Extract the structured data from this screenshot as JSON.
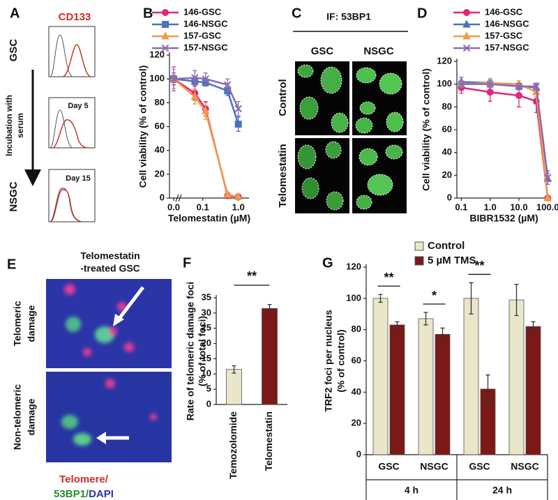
{
  "panels": {
    "A": {
      "label": "A",
      "marker": "CD133",
      "top": "GSC",
      "arrow": [
        "Incubation with",
        "serum"
      ],
      "bottom": "NSGC",
      "days": [
        "Day 5",
        "Day 15"
      ]
    },
    "C": {
      "label": "C",
      "title": "IF: 53BP1",
      "columns": [
        "GSC",
        "NSGC"
      ],
      "rows": [
        "Control",
        "Telomestatin"
      ]
    },
    "E": {
      "label": "E",
      "title": [
        "Telomestatin",
        "-treated GSC"
      ],
      "rows": [
        [
          "Telomeric",
          "damage"
        ],
        [
          "Non-telomeric",
          "damage"
        ]
      ],
      "legend": [
        "Telomere/",
        "53BP1/",
        "DAPI"
      ]
    }
  },
  "chart_data": [
    {
      "type": "line",
      "panel_label": "B",
      "ylabel": "Cell viability (% of control)",
      "xlabel": "Telomestatin (µM)",
      "log_x": true,
      "x": [
        0,
        0.06,
        0.12,
        0.5,
        1.0
      ],
      "xlim": [
        0.03,
        2
      ],
      "xticks": [
        {
          "value": 0,
          "label": "0.0"
        },
        0.1,
        {
          "value": 1,
          "label": "1.0"
        }
      ],
      "ylim": [
        0,
        120
      ],
      "yticks": [
        0,
        20,
        40,
        60,
        80,
        100,
        120
      ],
      "series": [
        {
          "name": "146-GSC",
          "color": "#e0277a",
          "marker": "o",
          "values": [
            100,
            88,
            75,
            2,
            1
          ],
          "errors": [
            5,
            6,
            6,
            2,
            1
          ]
        },
        {
          "name": "146-NSGC",
          "color": "#4a72c0",
          "marker": "s",
          "values": [
            100,
            98,
            97,
            90,
            62
          ],
          "errors": [
            3,
            3,
            3,
            4,
            6
          ]
        },
        {
          "name": "157-GSC",
          "color": "#f09a4a",
          "marker": "^",
          "values": [
            100,
            85,
            73,
            3,
            1
          ],
          "errors": [
            8,
            6,
            7,
            2,
            1
          ]
        },
        {
          "name": "157-NSGC",
          "color": "#8c6bb1",
          "marker": "x",
          "values": [
            100,
            101,
            100,
            95,
            75
          ],
          "errors": [
            10,
            6,
            5,
            5,
            6
          ]
        }
      ]
    },
    {
      "type": "line",
      "panel_label": "D",
      "ylabel": "Cell viability (% of control)",
      "xlabel": "BIBR1532 (µM)",
      "log_x": true,
      "x": [
        0.1,
        1,
        10,
        40,
        100
      ],
      "xlim": [
        0.07,
        130
      ],
      "xticks": [
        0.1,
        {
          "value": 1,
          "label": "1.0"
        },
        {
          "value": 10,
          "label": "10.0"
        },
        {
          "value": 100,
          "label": "100.0"
        }
      ],
      "ylim": [
        0,
        120
      ],
      "yticks": [
        0,
        20,
        40,
        60,
        80,
        100,
        120
      ],
      "series": [
        {
          "name": "146-GSC",
          "color": "#e0277a",
          "marker": "o",
          "values": [
            97,
            93,
            90,
            85,
            0
          ],
          "errors": [
            5,
            8,
            10,
            10,
            1
          ]
        },
        {
          "name": "146-NSGC",
          "color": "#4a72c0",
          "marker": "^",
          "values": [
            102,
            101,
            98,
            97,
            17
          ],
          "errors": [
            4,
            3,
            3,
            3,
            5
          ]
        },
        {
          "name": "157-GSC",
          "color": "#f09a4a",
          "marker": "^",
          "values": [
            100,
            101,
            100,
            93,
            0
          ],
          "errors": [
            3,
            4,
            3,
            4,
            1
          ]
        },
        {
          "name": "157-NSGC",
          "color": "#8c6bb1",
          "marker": "x",
          "values": [
            100,
            100,
            98,
            98,
            18
          ],
          "errors": [
            3,
            3,
            3,
            3,
            6
          ]
        }
      ]
    },
    {
      "type": "bar",
      "panel_label": "F",
      "ylabel": [
        "Rate of telomeric damage foci",
        "(% of total foci)"
      ],
      "categories": [
        "Temozolomide",
        "Telomestatin"
      ],
      "values": [
        11.5,
        31.5
      ],
      "errors": [
        1.2,
        1.3
      ],
      "colors": [
        "#e9e6c9",
        "#7b1818"
      ],
      "ylim": [
        0,
        35
      ],
      "yticks": [
        0,
        5,
        10,
        15,
        20,
        25,
        30,
        35
      ],
      "significance": "**"
    },
    {
      "type": "grouped_bar",
      "panel_label": "G",
      "ylabel": [
        "TRF2 foci per nucleus",
        "(% of control)"
      ],
      "categories": [
        "GSC",
        "NSGC",
        "GSC",
        "NSGC"
      ],
      "groups": [
        "4 h",
        "24 h"
      ],
      "series": [
        {
          "name": "Control",
          "color": "#e9e6c9",
          "values": [
            100,
            87,
            100,
            99
          ],
          "errors": [
            2.5,
            4,
            10,
            10
          ]
        },
        {
          "name": "5 µM TMS",
          "color": "#7b1818",
          "values": [
            83,
            77,
            42,
            82
          ],
          "errors": [
            2,
            4,
            9,
            3
          ]
        }
      ],
      "ylim": [
        0,
        120
      ],
      "yticks": [
        0,
        20,
        40,
        60,
        80,
        100,
        120
      ],
      "significance": [
        "**",
        "*",
        "**",
        null
      ],
      "legend": "upper right"
    }
  ]
}
